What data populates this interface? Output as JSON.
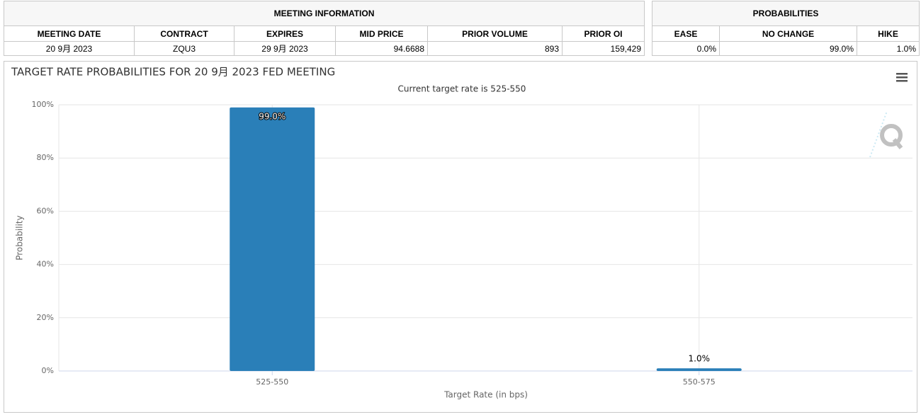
{
  "meeting_info": {
    "title": "MEETING INFORMATION",
    "columns": [
      "MEETING DATE",
      "CONTRACT",
      "EXPIRES",
      "MID PRICE",
      "PRIOR VOLUME",
      "PRIOR OI"
    ],
    "row": [
      "20 9月 2023",
      "ZQU3",
      "29 9月 2023",
      "94.6688",
      "893",
      "159,429"
    ]
  },
  "probabilities": {
    "title": "PROBABILITIES",
    "columns": [
      "EASE",
      "NO CHANGE",
      "HIKE"
    ],
    "row": [
      "0.0%",
      "99.0%",
      "1.0%"
    ]
  },
  "chart_data": {
    "type": "bar",
    "title": "TARGET RATE PROBABILITIES FOR 20 9月 2023 FED MEETING",
    "subtitle": "Current target rate is 525-550",
    "x_label": "Target Rate (in bps)",
    "y_label": "Probability",
    "categories": [
      "525-550",
      "550-575"
    ],
    "values": [
      99.0,
      1.0
    ],
    "value_labels": [
      "99.0%",
      "1.0%"
    ],
    "color": "#2a7fb8",
    "ylim": [
      0,
      100
    ],
    "yticks": [
      {
        "value": 0,
        "label": "0%"
      },
      {
        "value": 20,
        "label": "20%"
      },
      {
        "value": 40,
        "label": "40%"
      },
      {
        "value": 60,
        "label": "60%"
      },
      {
        "value": 80,
        "label": "80%"
      },
      {
        "value": 100,
        "label": "100%"
      }
    ],
    "grid": true
  }
}
